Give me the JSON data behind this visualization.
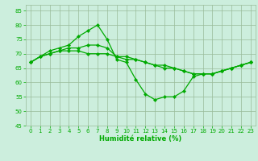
{
  "bg_color": "#cceedd",
  "grid_color": "#99bb99",
  "line_color": "#00aa00",
  "marker_color": "#00aa00",
  "xlabel": "Humidité relative (%)",
  "ylim": [
    45,
    87
  ],
  "xlim": [
    -0.5,
    23.5
  ],
  "yticks": [
    45,
    50,
    55,
    60,
    65,
    70,
    75,
    80,
    85
  ],
  "xticks": [
    0,
    1,
    2,
    3,
    4,
    5,
    6,
    7,
    8,
    9,
    10,
    11,
    12,
    13,
    14,
    15,
    16,
    17,
    18,
    19,
    20,
    21,
    22,
    23
  ],
  "series1": [
    67,
    69,
    71,
    72,
    73,
    76,
    78,
    80,
    75,
    68,
    67,
    61,
    56,
    54,
    55,
    55,
    57,
    62,
    63,
    63,
    64,
    65,
    66,
    67
  ],
  "series2": [
    67,
    69,
    70,
    71,
    72,
    72,
    73,
    73,
    72,
    69,
    69,
    68,
    67,
    66,
    65,
    65,
    64,
    63,
    63,
    63,
    64,
    65,
    66,
    67
  ],
  "series3": [
    67,
    69,
    70,
    71,
    71,
    71,
    70,
    70,
    70,
    69,
    68,
    68,
    67,
    66,
    66,
    65,
    64,
    63,
    63,
    63,
    64,
    65,
    66,
    67
  ]
}
